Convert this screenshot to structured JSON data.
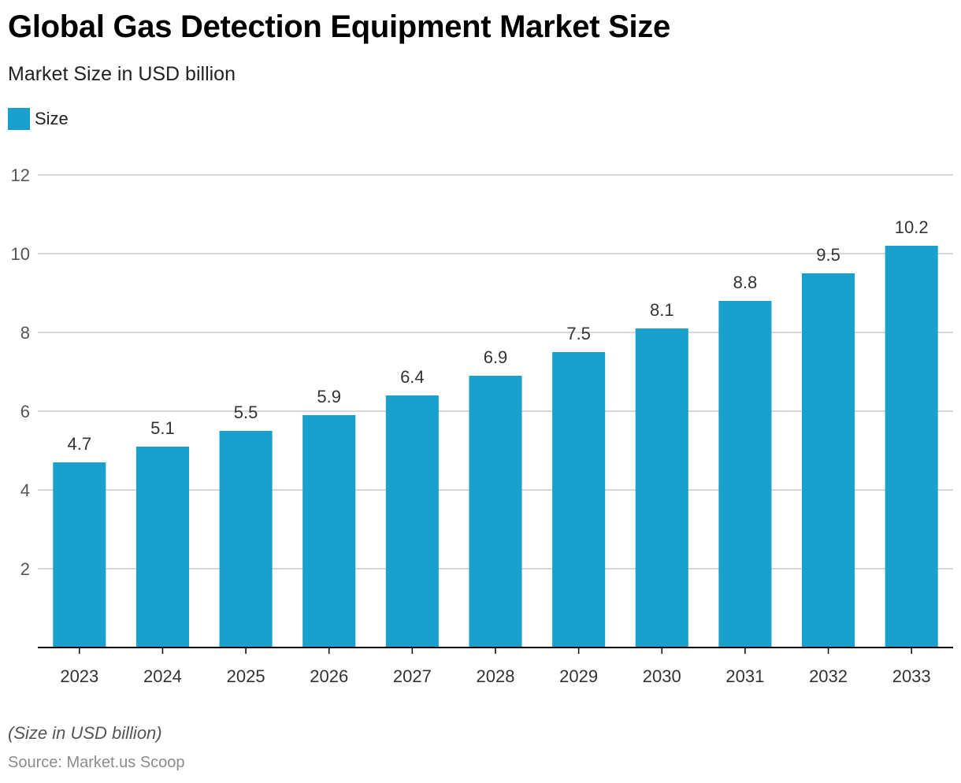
{
  "chart_data": {
    "type": "bar",
    "title": "Global Gas Detection Equipment Market Size",
    "subtitle": "Market Size in USD billion",
    "categories": [
      "2023",
      "2024",
      "2025",
      "2026",
      "2027",
      "2028",
      "2029",
      "2030",
      "2031",
      "2032",
      "2033"
    ],
    "series": [
      {
        "name": "Size",
        "values": [
          4.7,
          5.1,
          5.5,
          5.9,
          6.4,
          6.9,
          7.5,
          8.1,
          8.8,
          9.5,
          10.2
        ],
        "labels": [
          "4.7",
          "5.1",
          "5.5",
          "5.9",
          "6.4",
          "6.9",
          "7.5",
          "8.1",
          "8.8",
          "9.5",
          "10.2"
        ],
        "color": "#1aa0cc"
      }
    ],
    "ylim": [
      0,
      12
    ],
    "yticks": [
      2,
      4,
      6,
      8,
      10,
      12
    ],
    "xlabel": "",
    "ylabel": "",
    "grid": true,
    "legend_position": "top-left"
  },
  "footnote": "(Size in USD billion)",
  "source": "Source: Market.us Scoop",
  "colors": {
    "bar": "#1aa0cc",
    "grid": "#cccccc",
    "axis": "#000000"
  }
}
